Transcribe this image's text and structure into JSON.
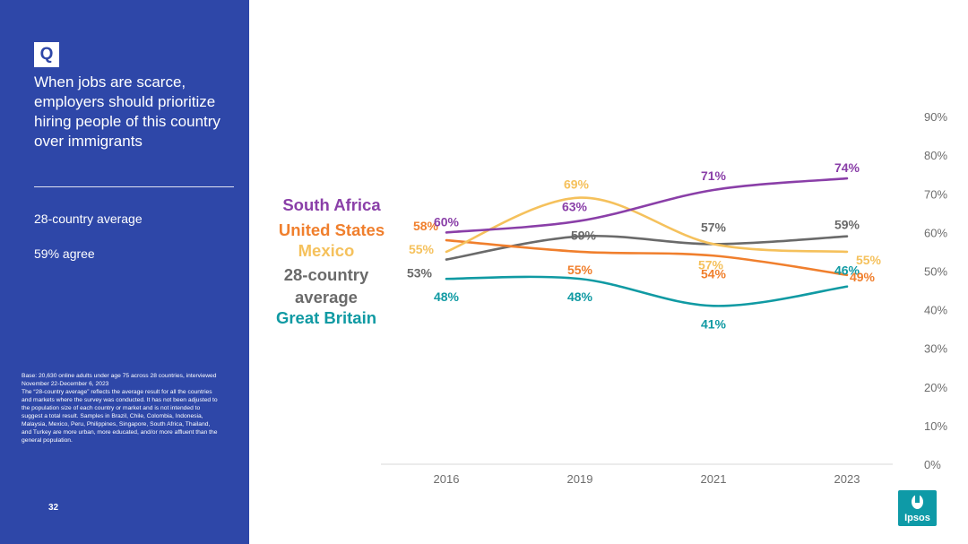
{
  "sidebar": {
    "q_badge": "Q",
    "question": "When jobs are scarce, employers should prioritize hiring people of this country over immigrants",
    "avg_label": "28-country average",
    "avg_value": "59% agree",
    "base_note": "Base: 20,630 online adults under age 75 across 28 countries, interviewed November 22-December 6, 2023\nThe “28-country average” reflects the average result for all the countries and markets where the survey was conducted. It has not been adjusted to the population size of each country or market and is not intended to suggest a total result. Samples in Brazil, Chile, Colombia, Indonesia, Malaysia, Mexico, Peru, Philippines, Singapore, South Africa, Thailand, and Turkey are more urban, more educated, and/or more affluent than the general population.",
    "page_number": "32"
  },
  "logo": {
    "text": "Ipsos",
    "color": "#0e9aa7"
  },
  "chart_data": {
    "type": "line",
    "title": "",
    "categories": [
      "2016",
      "2019",
      "2021",
      "2023"
    ],
    "ylim": [
      0,
      90
    ],
    "yticks": [
      "0%",
      "10%",
      "20%",
      "30%",
      "40%",
      "50%",
      "60%",
      "70%",
      "80%",
      "90%"
    ],
    "series": [
      {
        "name": "South Africa",
        "color": "#8a3fa8",
        "values": [
          60,
          63,
          71,
          74
        ],
        "labels": [
          "60%",
          "63%",
          "71%",
          "74%"
        ]
      },
      {
        "name": "United States",
        "color": "#f07f2d",
        "values": [
          58,
          55,
          54,
          49
        ],
        "labels": [
          "58%",
          "55%",
          "54%",
          "49%"
        ]
      },
      {
        "name": "Mexico",
        "color": "#f5c15c",
        "values": [
          55,
          69,
          57,
          55
        ],
        "labels": [
          "55%",
          "69%",
          "57%",
          "55%"
        ]
      },
      {
        "name": "28-country average",
        "color": "#6a6a6a",
        "values": [
          53,
          59,
          57,
          59
        ],
        "labels": [
          "53%",
          "59%",
          "57%",
          "59%"
        ]
      },
      {
        "name": "Great Britain",
        "color": "#109aa3",
        "values": [
          48,
          48,
          41,
          46
        ],
        "labels": [
          "48%",
          "48%",
          "41%",
          "46%"
        ]
      }
    ]
  }
}
